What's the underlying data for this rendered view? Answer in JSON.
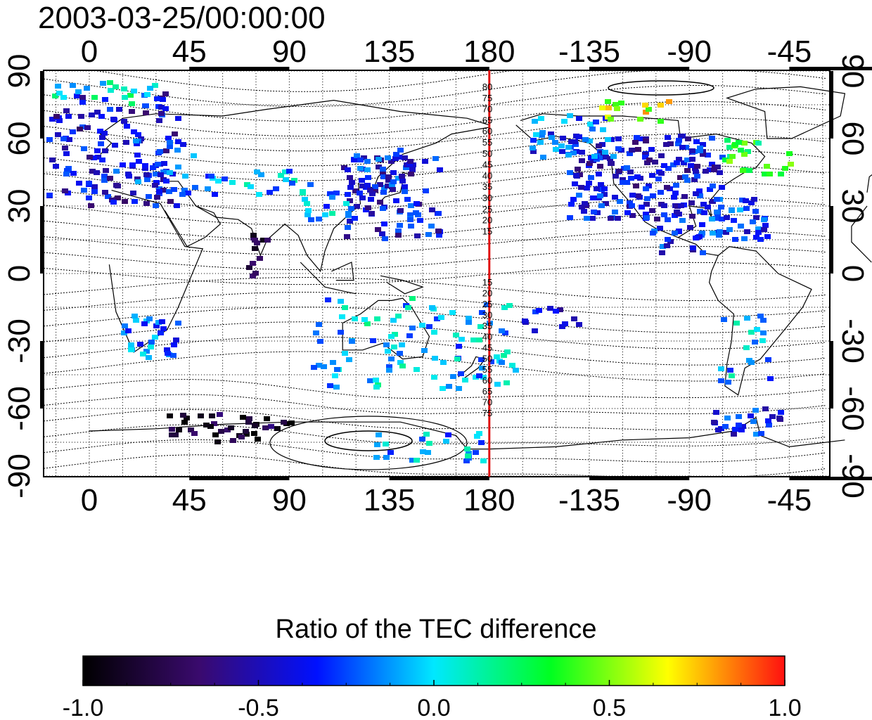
{
  "title": "2003-03-25/00:00:00",
  "map": {
    "lon_ticks": [
      "0",
      "45",
      "90",
      "135",
      "180",
      "-135",
      "-90",
      "-45"
    ],
    "lat_ticks": [
      "90",
      "60",
      "30",
      "0",
      "-30",
      "-60",
      "-90"
    ],
    "contour_labels_north": [
      "80",
      "75",
      "70",
      "65",
      "60",
      "55",
      "50",
      "45",
      "40",
      "35",
      "30",
      "25",
      "20",
      "15"
    ],
    "contour_labels_south": [
      "15",
      "20",
      "25",
      "30",
      "35",
      "40",
      "45",
      "50",
      "55",
      "60",
      "65",
      "70",
      "75"
    ],
    "meridian_line_lon": 180,
    "meridian_line_color": "#e01010"
  },
  "colorbar": {
    "title": "Ratio of the TEC difference",
    "ticks": [
      "-1.0",
      "-0.5",
      "0.0",
      "0.5",
      "1.0"
    ],
    "range": [
      -1.0,
      1.0
    ],
    "colors": [
      "#000000",
      "#3a0a6e",
      "#0010ff",
      "#00e8ff",
      "#00ff20",
      "#ffff00",
      "#ff1010"
    ]
  }
}
